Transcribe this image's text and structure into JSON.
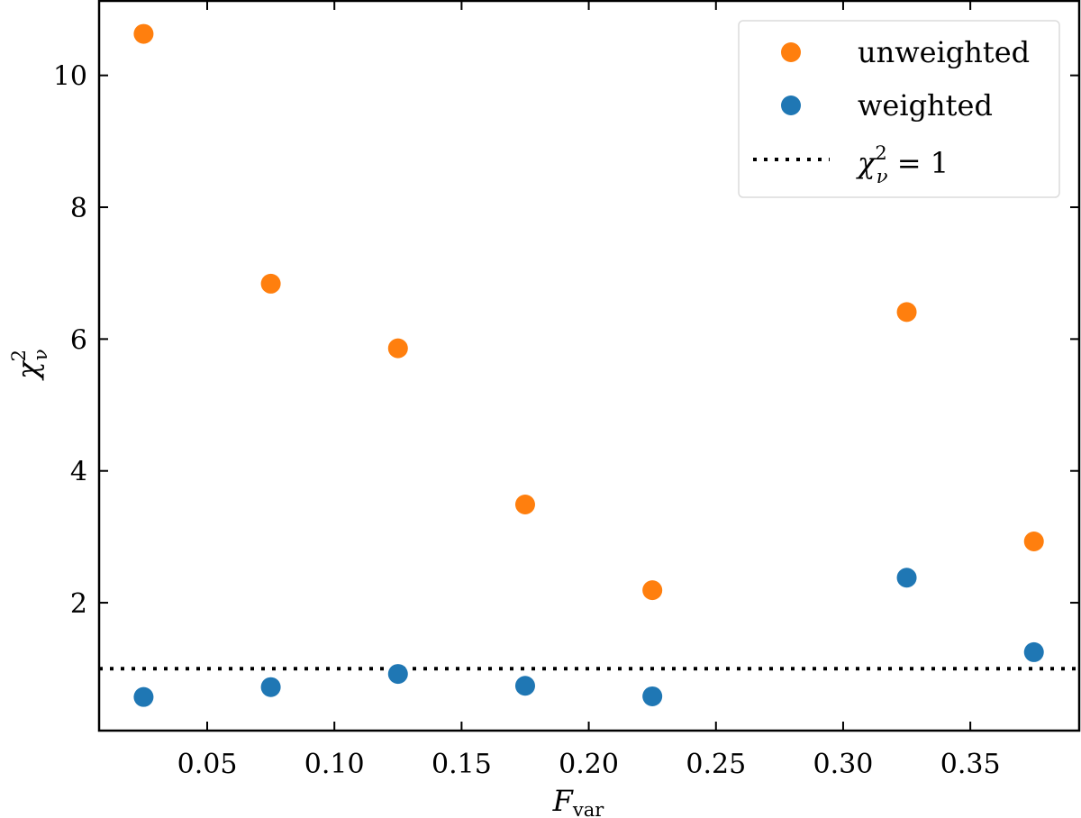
{
  "chart_data": {
    "type": "scatter",
    "title": "",
    "xlabel": "F_var",
    "xlabel_main": "F",
    "xlabel_sub": "var",
    "ylabel": "χ²_ν",
    "ylabel_main": "χ",
    "ylabel_sup": "2",
    "ylabel_sub": "ν",
    "xlim": [
      0.0075,
      0.3928
    ],
    "ylim": [
      0.06,
      11.13
    ],
    "grid": false,
    "legend_position": "upper right",
    "xticks": [
      0.05,
      0.1,
      0.15,
      0.2,
      0.25,
      0.3,
      0.35
    ],
    "xtick_labels": [
      "0.05",
      "0.10",
      "0.15",
      "0.20",
      "0.25",
      "0.30",
      "0.35"
    ],
    "yticks": [
      2,
      4,
      6,
      8,
      10
    ],
    "ytick_labels": [
      "2",
      "4",
      "6",
      "8",
      "10"
    ],
    "x": [
      0.025,
      0.075,
      0.125,
      0.175,
      0.225,
      0.325,
      0.375
    ],
    "series": [
      {
        "name": "unweighted",
        "color": "#ff7f0e",
        "marker": "circle",
        "values": [
          10.63,
          6.84,
          5.86,
          3.49,
          2.19,
          6.41,
          2.93
        ]
      },
      {
        "name": "weighted",
        "color": "#1f77b4",
        "marker": "circle",
        "values": [
          0.57,
          0.72,
          0.92,
          0.74,
          0.58,
          2.38,
          1.25
        ]
      }
    ],
    "reference_lines": [
      {
        "name": "χ²_ν = 1",
        "y": 1,
        "style": "dotted",
        "color": "#000000"
      }
    ],
    "legend": [
      {
        "label": "unweighted",
        "type": "marker",
        "color": "#ff7f0e"
      },
      {
        "label": "weighted",
        "type": "marker",
        "color": "#1f77b4"
      },
      {
        "label": "χ²_ν = 1",
        "label_main": "χ",
        "label_sup": "2",
        "label_sub": "ν",
        "label_rest": " = 1",
        "type": "dotted-line",
        "color": "#000000"
      }
    ]
  }
}
